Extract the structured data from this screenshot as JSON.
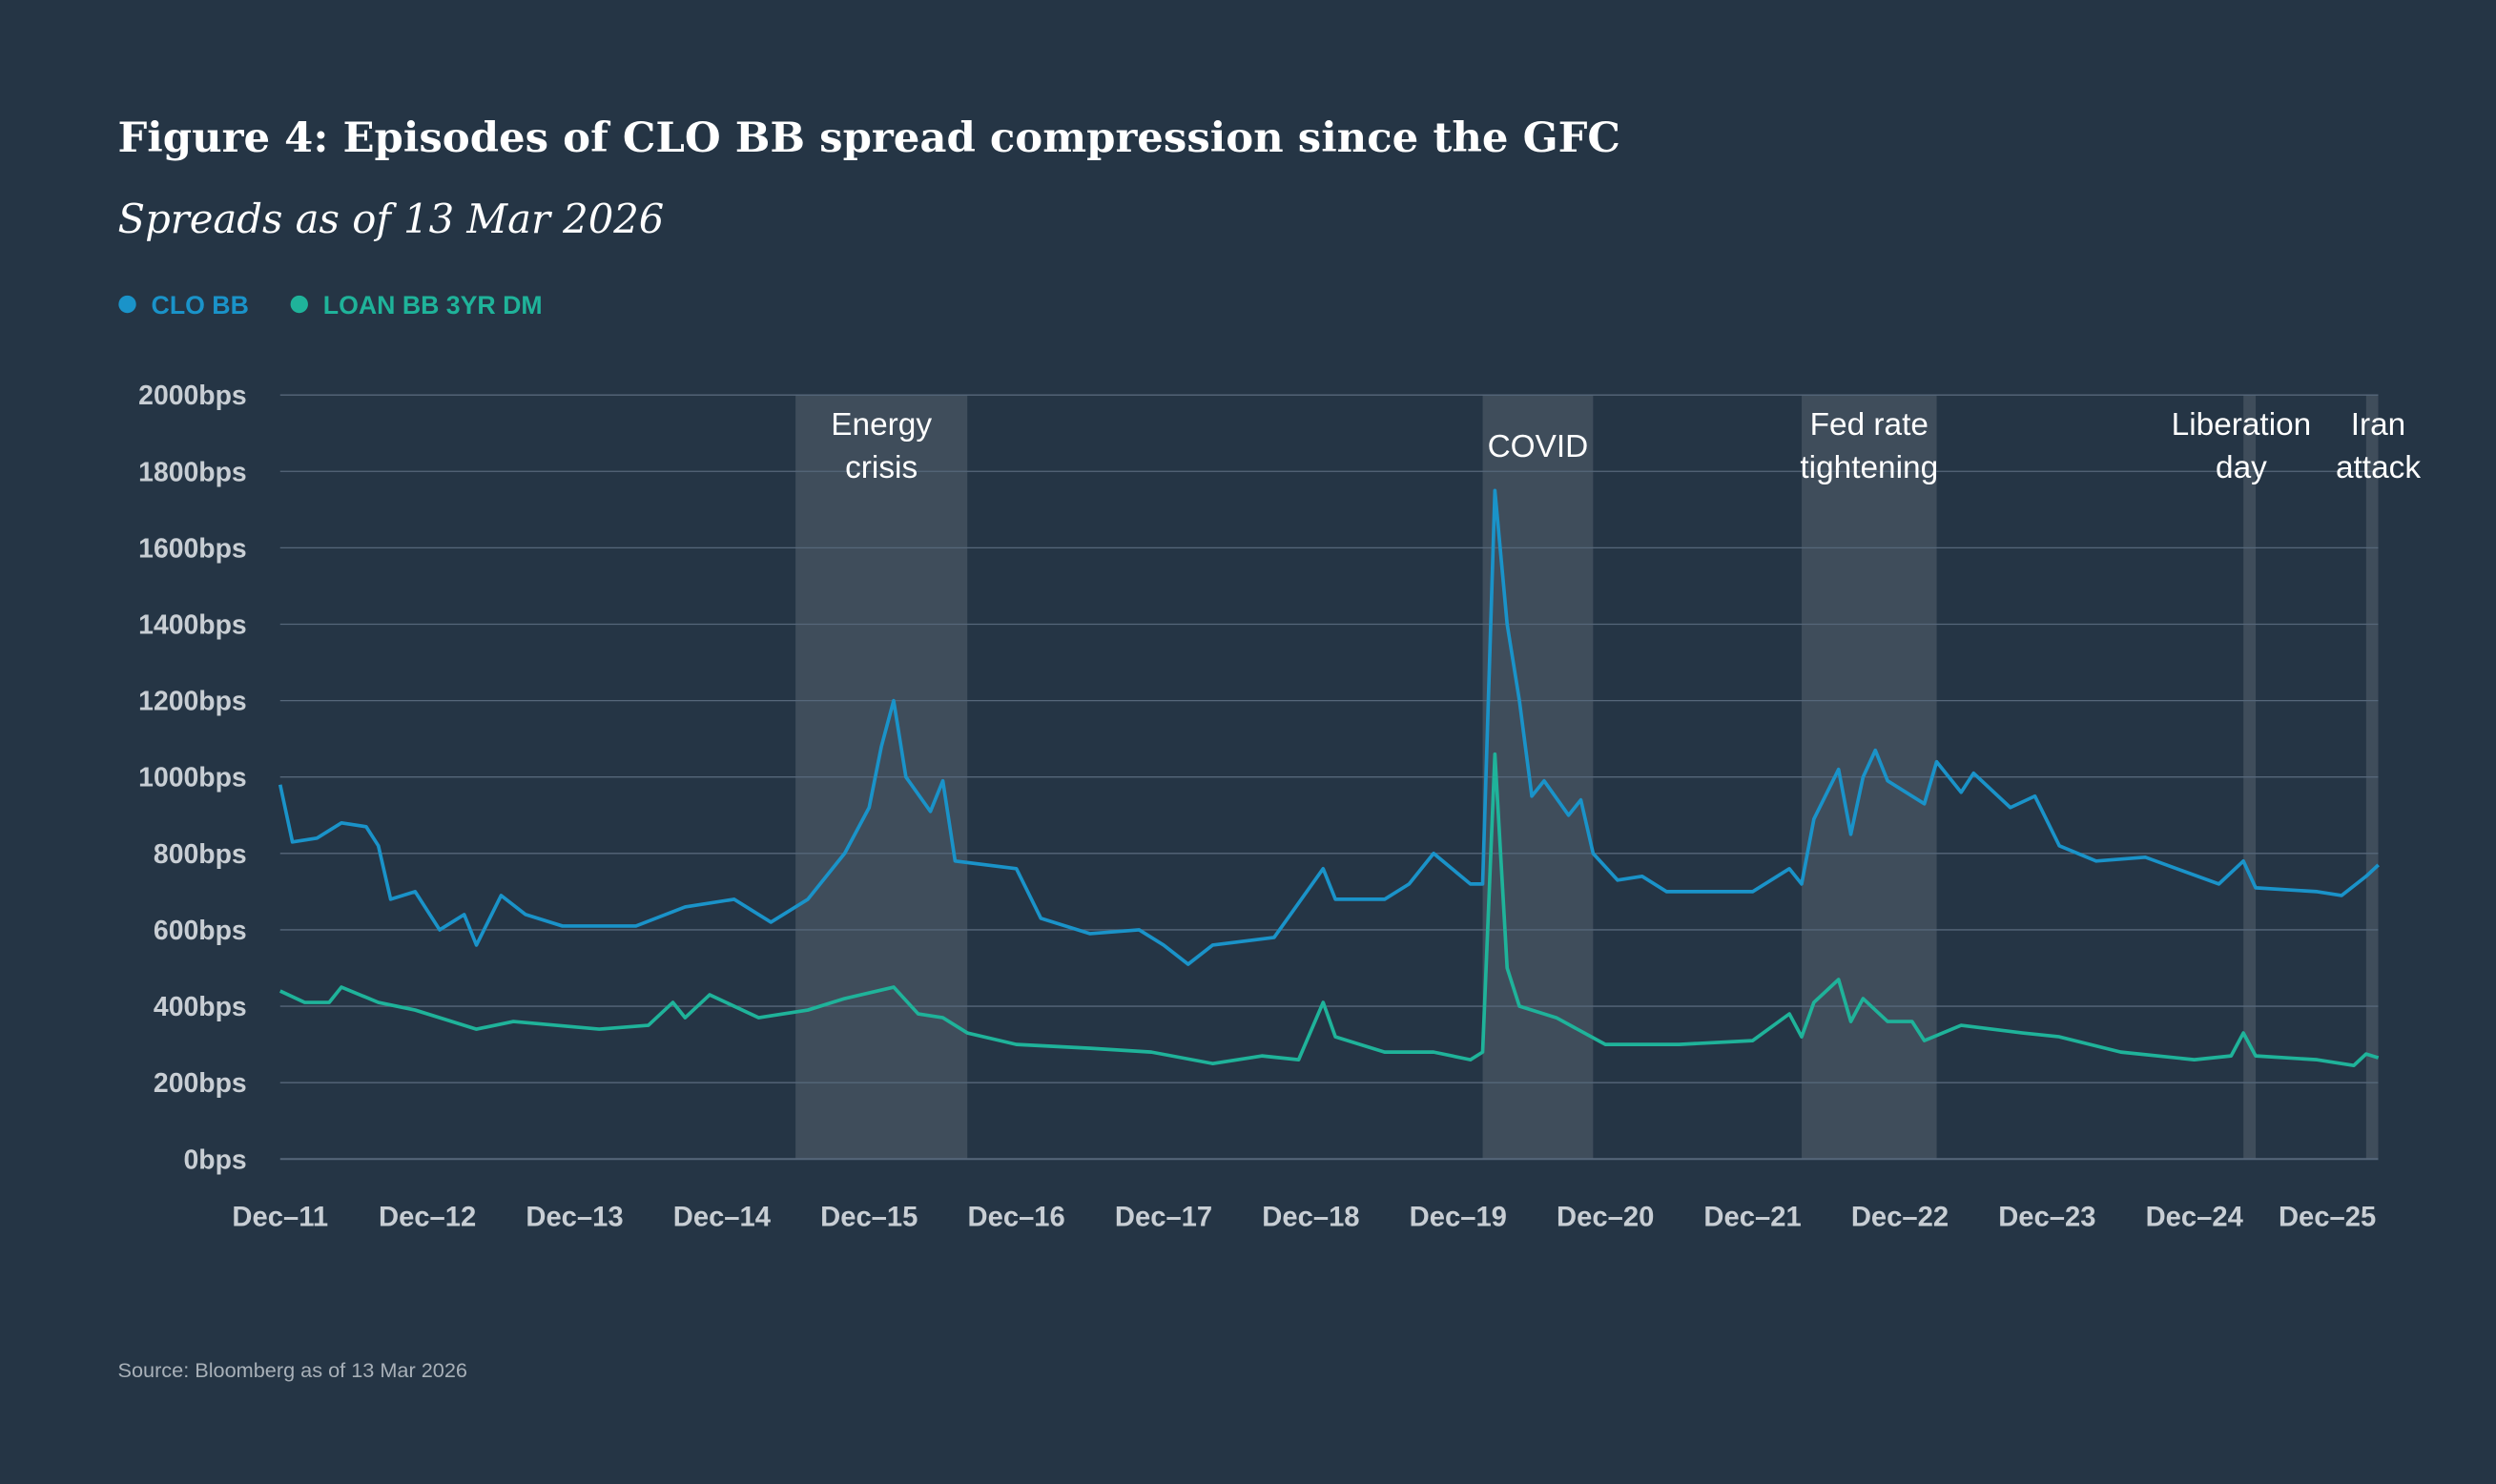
{
  "chart_data": {
    "type": "line",
    "title": "Figure 4: Episodes of CLO BB spread compression since the GFC",
    "subtitle": "Spreads as of 13 Mar 2026",
    "source": "Source: Bloomberg as of 13 Mar 2026",
    "xlabel": "",
    "ylabel": "",
    "ylim": [
      0,
      2000
    ],
    "xlim": [
      "2011-12",
      "2026-03"
    ],
    "grid": true,
    "legend_position": "top-left",
    "y_ticks": [
      "0bps",
      "200bps",
      "400bps",
      "600bps",
      "800bps",
      "1000bps",
      "1200bps",
      "1400bps",
      "1600bps",
      "1800bps",
      "2000bps"
    ],
    "y_tick_values": [
      0,
      200,
      400,
      600,
      800,
      1000,
      1200,
      1400,
      1600,
      1800,
      2000
    ],
    "x_ticks": [
      "Dec–11",
      "Dec–12",
      "Dec–13",
      "Dec–14",
      "Dec–15",
      "Dec–16",
      "Dec–17",
      "Dec–18",
      "Dec–19",
      "Dec–20",
      "Dec–21",
      "Dec–22",
      "Dec–23",
      "Dec–24",
      "Dec–25"
    ],
    "x_tick_dates": [
      "2011-12",
      "2012-12",
      "2013-12",
      "2014-12",
      "2015-12",
      "2016-12",
      "2017-12",
      "2018-12",
      "2019-12",
      "2020-12",
      "2021-12",
      "2022-12",
      "2023-12",
      "2024-12",
      "2025-12"
    ],
    "shaded_periods": [
      {
        "label": [
          "Energy",
          "crisis"
        ],
        "start": "2015-06",
        "end": "2016-08"
      },
      {
        "label": [
          "COVID"
        ],
        "start": "2020-02",
        "end": "2020-11"
      },
      {
        "label": [
          "Fed rate",
          "tightening"
        ],
        "start": "2022-04",
        "end": "2023-03"
      },
      {
        "label": [
          "Liberation",
          "day"
        ],
        "start": "2025-04",
        "end": "2025-05"
      },
      {
        "label": [
          "Iran",
          "attack"
        ],
        "start": "2026-02",
        "end": "2026-03"
      }
    ],
    "series": [
      {
        "name": "CLO BB",
        "color": "#1a93c9",
        "points": [
          [
            "2011-12",
            980
          ],
          [
            "2012-01",
            830
          ],
          [
            "2012-03",
            840
          ],
          [
            "2012-05",
            880
          ],
          [
            "2012-07",
            870
          ],
          [
            "2012-08",
            820
          ],
          [
            "2012-09",
            680
          ],
          [
            "2012-11",
            700
          ],
          [
            "2013-01",
            600
          ],
          [
            "2013-03",
            640
          ],
          [
            "2013-04",
            560
          ],
          [
            "2013-06",
            690
          ],
          [
            "2013-08",
            640
          ],
          [
            "2013-11",
            610
          ],
          [
            "2014-05",
            610
          ],
          [
            "2014-09",
            660
          ],
          [
            "2015-01",
            680
          ],
          [
            "2015-04",
            620
          ],
          [
            "2015-07",
            680
          ],
          [
            "2015-10",
            800
          ],
          [
            "2015-12",
            920
          ],
          [
            "2016-01",
            1080
          ],
          [
            "2016-02",
            1200
          ],
          [
            "2016-03",
            1000
          ],
          [
            "2016-05",
            910
          ],
          [
            "2016-06",
            990
          ],
          [
            "2016-07",
            780
          ],
          [
            "2016-12",
            760
          ],
          [
            "2017-02",
            630
          ],
          [
            "2017-06",
            590
          ],
          [
            "2017-10",
            600
          ],
          [
            "2017-12",
            560
          ],
          [
            "2018-02",
            510
          ],
          [
            "2018-04",
            560
          ],
          [
            "2018-09",
            580
          ],
          [
            "2019-01",
            760
          ],
          [
            "2019-02",
            680
          ],
          [
            "2019-06",
            680
          ],
          [
            "2019-08",
            720
          ],
          [
            "2019-10",
            800
          ],
          [
            "2020-01",
            720
          ],
          [
            "2020-02",
            720
          ],
          [
            "2020-03",
            1750
          ],
          [
            "2020-04",
            1400
          ],
          [
            "2020-05",
            1200
          ],
          [
            "2020-06",
            950
          ],
          [
            "2020-07",
            990
          ],
          [
            "2020-09",
            900
          ],
          [
            "2020-10",
            940
          ],
          [
            "2020-11",
            800
          ],
          [
            "2021-01",
            730
          ],
          [
            "2021-03",
            740
          ],
          [
            "2021-05",
            700
          ],
          [
            "2021-12",
            700
          ],
          [
            "2022-03",
            760
          ],
          [
            "2022-04",
            720
          ],
          [
            "2022-05",
            890
          ],
          [
            "2022-07",
            1020
          ],
          [
            "2022-08",
            850
          ],
          [
            "2022-09",
            1000
          ],
          [
            "2022-10",
            1070
          ],
          [
            "2022-11",
            990
          ],
          [
            "2023-02",
            930
          ],
          [
            "2023-03",
            1040
          ],
          [
            "2023-05",
            960
          ],
          [
            "2023-06",
            1010
          ],
          [
            "2023-09",
            920
          ],
          [
            "2023-11",
            950
          ],
          [
            "2024-01",
            820
          ],
          [
            "2024-04",
            780
          ],
          [
            "2024-08",
            790
          ],
          [
            "2025-02",
            720
          ],
          [
            "2025-04",
            780
          ],
          [
            "2025-05",
            710
          ],
          [
            "2025-10",
            700
          ],
          [
            "2025-12",
            690
          ],
          [
            "2026-02",
            740
          ],
          [
            "2026-03",
            770
          ]
        ]
      },
      {
        "name": "LOAN BB 3YR DM",
        "color": "#1fb39a",
        "points": [
          [
            "2011-12",
            440
          ],
          [
            "2012-02",
            410
          ],
          [
            "2012-04",
            410
          ],
          [
            "2012-05",
            450
          ],
          [
            "2012-08",
            410
          ],
          [
            "2012-11",
            390
          ],
          [
            "2013-04",
            340
          ],
          [
            "2013-07",
            360
          ],
          [
            "2014-02",
            340
          ],
          [
            "2014-06",
            350
          ],
          [
            "2014-08",
            410
          ],
          [
            "2014-09",
            370
          ],
          [
            "2014-11",
            430
          ],
          [
            "2015-03",
            370
          ],
          [
            "2015-07",
            390
          ],
          [
            "2015-10",
            420
          ],
          [
            "2016-02",
            450
          ],
          [
            "2016-04",
            380
          ],
          [
            "2016-06",
            370
          ],
          [
            "2016-08",
            330
          ],
          [
            "2016-12",
            300
          ],
          [
            "2017-06",
            290
          ],
          [
            "2017-11",
            280
          ],
          [
            "2018-04",
            250
          ],
          [
            "2018-08",
            270
          ],
          [
            "2018-11",
            260
          ],
          [
            "2019-01",
            410
          ],
          [
            "2019-02",
            320
          ],
          [
            "2019-06",
            280
          ],
          [
            "2019-10",
            280
          ],
          [
            "2020-01",
            260
          ],
          [
            "2020-02",
            280
          ],
          [
            "2020-03",
            1060
          ],
          [
            "2020-04",
            500
          ],
          [
            "2020-05",
            400
          ],
          [
            "2020-08",
            370
          ],
          [
            "2020-12",
            300
          ],
          [
            "2021-06",
            300
          ],
          [
            "2021-12",
            310
          ],
          [
            "2022-03",
            380
          ],
          [
            "2022-04",
            320
          ],
          [
            "2022-05",
            410
          ],
          [
            "2022-07",
            470
          ],
          [
            "2022-08",
            360
          ],
          [
            "2022-09",
            420
          ],
          [
            "2022-11",
            360
          ],
          [
            "2023-01",
            360
          ],
          [
            "2023-02",
            310
          ],
          [
            "2023-05",
            350
          ],
          [
            "2023-10",
            330
          ],
          [
            "2024-01",
            320
          ],
          [
            "2024-06",
            280
          ],
          [
            "2024-12",
            260
          ],
          [
            "2025-03",
            270
          ],
          [
            "2025-04",
            330
          ],
          [
            "2025-05",
            270
          ],
          [
            "2025-10",
            260
          ],
          [
            "2026-01",
            245
          ],
          [
            "2026-02",
            275
          ],
          [
            "2026-03",
            265
          ]
        ]
      }
    ]
  }
}
